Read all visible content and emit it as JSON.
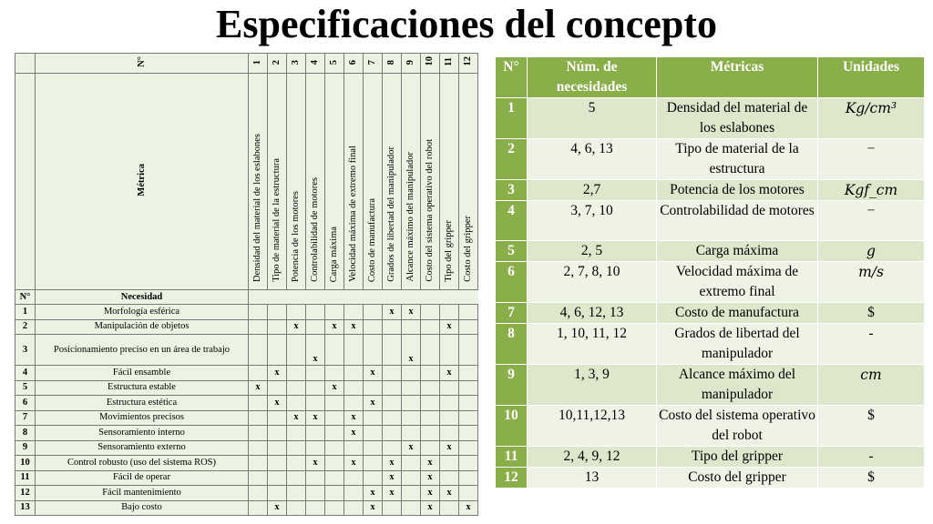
{
  "title": "Especificaciones del concepto",
  "matrix": {
    "no_label": "N°",
    "metric_label": "Métrica",
    "need_no_label": "N°",
    "need_label": "Necesidad",
    "metric_numbers": [
      "1",
      "2",
      "3",
      "4",
      "5",
      "6",
      "7",
      "8",
      "9",
      "10",
      "11",
      "12"
    ],
    "metric_names": [
      "Densidad del material de los eslabones",
      "Tipo de material de la estructura",
      "Potencia de los motores",
      "Controlabilidad de motores",
      "Carga máxima",
      "Velocidad máxima de extremo final",
      "Costo de manufactura",
      "Grados de libertad del manipulador",
      "Alcance máximo del manipulador",
      "Costo del sistema operativo del robot",
      "Tipo del gripper",
      "Costo del gripper"
    ],
    "needs": [
      {
        "n": "1",
        "name": "Morfología esférica",
        "marks": [
          "",
          "",
          "",
          "",
          "",
          "",
          "",
          "x",
          "x",
          "",
          "",
          ""
        ]
      },
      {
        "n": "2",
        "name": "Manipulación de objetos",
        "marks": [
          "",
          "",
          "x",
          "",
          "x",
          "x",
          "",
          "",
          "",
          "",
          "x",
          ""
        ]
      },
      {
        "n": "3",
        "name": "Posicionamiento preciso en un área de trabajo",
        "marks": [
          "",
          "",
          "",
          "x",
          "",
          "",
          "",
          "",
          "x",
          "",
          "",
          ""
        ]
      },
      {
        "n": "4",
        "name": "Fácil ensamble",
        "marks": [
          "",
          "x",
          "",
          "",
          "",
          "",
          "x",
          "",
          "",
          "",
          "x",
          ""
        ]
      },
      {
        "n": "5",
        "name": "Estructura estable",
        "marks": [
          "x",
          "",
          "",
          "",
          "x",
          "",
          "",
          "",
          "",
          "",
          "",
          ""
        ]
      },
      {
        "n": "6",
        "name": "Estructura estética",
        "marks": [
          "",
          "x",
          "",
          "",
          "",
          "",
          "x",
          "",
          "",
          "",
          "",
          ""
        ]
      },
      {
        "n": "7",
        "name": "Movimientos precisos",
        "marks": [
          "",
          "",
          "x",
          "x",
          "",
          "x",
          "",
          "",
          "",
          "",
          "",
          ""
        ]
      },
      {
        "n": "8",
        "name": "Sensoramiento interno",
        "marks": [
          "",
          "",
          "",
          "",
          "",
          "x",
          "",
          "",
          "",
          "",
          "",
          ""
        ]
      },
      {
        "n": "9",
        "name": "Sensoramiento externo",
        "marks": [
          "",
          "",
          "",
          "",
          "",
          "",
          "",
          "",
          "x",
          "",
          "x",
          ""
        ]
      },
      {
        "n": "10",
        "name": "Control robusto (uso del sistema ROS)",
        "marks": [
          "",
          "",
          "",
          "x",
          "",
          "x",
          "",
          "x",
          "",
          "x",
          "",
          ""
        ]
      },
      {
        "n": "11",
        "name": "Fácil de operar",
        "marks": [
          "",
          "",
          "",
          "",
          "",
          "",
          "",
          "x",
          "",
          "x",
          "",
          ""
        ]
      },
      {
        "n": "12",
        "name": "Fácil mantenimiento",
        "marks": [
          "",
          "",
          "",
          "",
          "",
          "",
          "x",
          "x",
          "",
          "x",
          "x",
          ""
        ]
      },
      {
        "n": "13",
        "name": "Bajo costo",
        "marks": [
          "",
          "x",
          "",
          "",
          "",
          "",
          "x",
          "",
          "",
          "x",
          "",
          "x"
        ]
      }
    ]
  },
  "metrics_table": {
    "headers": [
      "N°",
      "Núm. de necesidades",
      "Métricas",
      "Unidades"
    ],
    "rows": [
      {
        "n": "1",
        "needs": "5",
        "metric": "Densidad del material de los eslabones",
        "unit": "Kg/cm³"
      },
      {
        "n": "2",
        "needs": "4, 6, 13",
        "metric": "Tipo de material de la estructura",
        "unit": "−"
      },
      {
        "n": "3",
        "needs": "2,7",
        "metric": "Potencia de los motores",
        "unit": "Kgf_cm"
      },
      {
        "n": "4",
        "needs": "3, 7, 10",
        "metric": "Controlabilidad de motores",
        "unit": "−"
      },
      {
        "n": "5",
        "needs": "2, 5",
        "metric": "Carga máxima",
        "unit": "g"
      },
      {
        "n": "6",
        "needs": "2, 7, 8, 10",
        "metric": "Velocidad máxima de extremo final",
        "unit": "m/s"
      },
      {
        "n": "7",
        "needs": "4, 6, 12, 13",
        "metric": "Costo de manufactura",
        "unit": "$"
      },
      {
        "n": "8",
        "needs": "1, 10, 11, 12",
        "metric": "Grados de libertad del manipulador",
        "unit": "-"
      },
      {
        "n": "9",
        "needs": "1, 3, 9",
        "metric": "Alcance máximo del manipulador",
        "unit": "cm"
      },
      {
        "n": "10",
        "needs": "10,11,12,13",
        "metric": "Costo del sistema operativo del robot",
        "unit": "$"
      },
      {
        "n": "11",
        "needs": "2, 4, 9, 12",
        "metric": "Tipo del gripper",
        "unit": "-"
      },
      {
        "n": "12",
        "needs": "13",
        "metric": "Costo del gripper",
        "unit": "$"
      }
    ],
    "italic_units": [
      "1",
      "3",
      "5",
      "6",
      "9"
    ]
  }
}
